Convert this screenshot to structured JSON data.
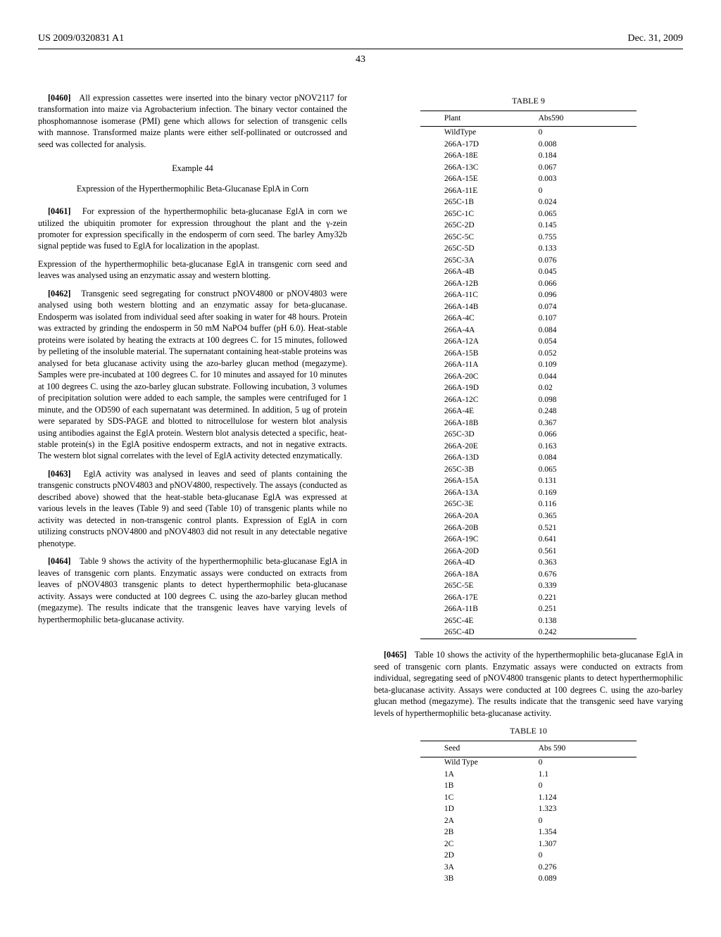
{
  "header": {
    "pubnum": "US 2009/0320831 A1",
    "date": "Dec. 31, 2009",
    "pagenum": "43"
  },
  "left": {
    "p0460_num": "[0460]",
    "p0460": "All expression cassettes were inserted into the binary vector pNOV2117 for transformation into maize via Agrobacterium infection. The binary vector contained the phosphomannose isomerase (PMI) gene which allows for selection of transgenic cells with mannose. Transformed maize plants were either self-pollinated or outcrossed and seed was collected for analysis.",
    "ex44": "Example 44",
    "ex44_sub": "Expression of the Hyperthermophilic Beta-Glucanase EplA in Corn",
    "p0461_num": "[0461]",
    "p0461": "For expression of the hyperthermophilic beta-glucanase EglA in corn we utilized the ubiquitin promoter for expression throughout the plant and the γ-zein promoter for expression specifically in the endosperm of corn seed. The barley Amy32b signal peptide was fused to EglA for localization in the apoplast.",
    "runon": "Expression of the hyperthermophilic beta-glucanase EglA in transgenic corn seed and leaves was analysed using an enzymatic assay and western blotting.",
    "p0462_num": "[0462]",
    "p0462": "Transgenic seed segregating for construct pNOV4800 or pNOV4803 were analysed using both western blotting and an enzymatic assay for beta-glucanase. Endosperm was isolated from individual seed after soaking in water for 48 hours. Protein was extracted by grinding the endosperm in 50 mM NaPO4 buffer (pH 6.0). Heat-stable proteins were isolated by heating the extracts at 100 degrees C. for 15 minutes, followed by pelleting of the insoluble material. The supernatant containing heat-stable proteins was analysed for beta glucanase activity using the azo-barley glucan method (megazyme). Samples were pre-incubated at 100 degrees C. for 10 minutes and assayed for 10 minutes at 100 degrees C. using the azo-barley glucan substrate. Following incubation, 3 volumes of precipitation solution were added to each sample, the samples were centrifuged for 1 minute, and the OD590 of each supernatant was determined. In addition, 5 ug of protein were separated by SDS-PAGE and blotted to nitrocellulose for western blot analysis using antibodies against the EglA protein. Western blot analysis detected a specific, heat-stable protein(s) in the EglA positive endosperm extracts, and not in negative extracts. The western blot signal correlates with the level of EglA activity detected enzymatically.",
    "p0463_num": "[0463]",
    "p0463": "EglA activity was analysed in leaves and seed of plants containing the transgenic constructs pNOV4803 and pNOV4800, respectively. The assays (conducted as described above) showed that the heat-stable beta-glucanase EglA was expressed at various levels in the leaves (Table 9) and seed (Table 10) of transgenic plants while no activity was detected in non-transgenic control plants. Expression of EglA in corn utilizing constructs pNOV4800 and pNOV4803 did not result in any detectable negative phenotype.",
    "p0464_num": "[0464]",
    "p0464": "Table 9 shows the activity of the hyperthermophilic beta-glucanase EglA in leaves of transgenic corn plants. Enzymatic assays were conducted on extracts from leaves of pNOV4803 transgenic plants to detect hyperthermophilic beta-glucanase activity. Assays were conducted at 100 degrees C. using the azo-barley glucan method (megazyme). The results indicate that the transgenic leaves have varying levels of hyperthermophilic beta-glucanase activity."
  },
  "table9": {
    "caption": "TABLE 9",
    "col1": "Plant",
    "col2": "Abs590",
    "rows": [
      [
        "WildType",
        "0"
      ],
      [
        "266A-17D",
        "0.008"
      ],
      [
        "266A-18E",
        "0.184"
      ],
      [
        "266A-13C",
        "0.067"
      ],
      [
        "266A-15E",
        "0.003"
      ],
      [
        "266A-11E",
        "0"
      ],
      [
        "265C-1B",
        "0.024"
      ],
      [
        "265C-1C",
        "0.065"
      ],
      [
        "265C-2D",
        "0.145"
      ],
      [
        "265C-5C",
        "0.755"
      ],
      [
        "265C-5D",
        "0.133"
      ],
      [
        "265C-3A",
        "0.076"
      ],
      [
        "266A-4B",
        "0.045"
      ],
      [
        "266A-12B",
        "0.066"
      ],
      [
        "266A-11C",
        "0.096"
      ],
      [
        "266A-14B",
        "0.074"
      ],
      [
        "266A-4C",
        "0.107"
      ],
      [
        "266A-4A",
        "0.084"
      ],
      [
        "266A-12A",
        "0.054"
      ],
      [
        "266A-15B",
        "0.052"
      ],
      [
        "266A-11A",
        "0.109"
      ],
      [
        "266A-20C",
        "0.044"
      ],
      [
        "266A-19D",
        "0.02"
      ],
      [
        "266A-12C",
        "0.098"
      ],
      [
        "266A-4E",
        "0.248"
      ],
      [
        "266A-18B",
        "0.367"
      ],
      [
        "265C-3D",
        "0.066"
      ],
      [
        "266A-20E",
        "0.163"
      ],
      [
        "266A-13D",
        "0.084"
      ],
      [
        "265C-3B",
        "0.065"
      ],
      [
        "266A-15A",
        "0.131"
      ],
      [
        "266A-13A",
        "0.169"
      ],
      [
        "265C-3E",
        "0.116"
      ],
      [
        "266A-20A",
        "0.365"
      ],
      [
        "266A-20B",
        "0.521"
      ],
      [
        "266A-19C",
        "0.641"
      ],
      [
        "266A-20D",
        "0.561"
      ],
      [
        "266A-4D",
        "0.363"
      ],
      [
        "266A-18A",
        "0.676"
      ],
      [
        "265C-5E",
        "0.339"
      ],
      [
        "266A-17E",
        "0.221"
      ],
      [
        "266A-11B",
        "0.251"
      ],
      [
        "265C-4E",
        "0.138"
      ],
      [
        "265C-4D",
        "0.242"
      ]
    ]
  },
  "right": {
    "p0465_num": "[0465]",
    "p0465": "Table 10 shows the activity of the hyperthermophilic beta-glucanase EglA in seed of transgenic corn plants. Enzymatic assays were conducted on extracts from individual, segregating seed of pNOV4800 transgenic plants to detect hyperthermophilic beta-glucanase activity. Assays were conducted at 100 degrees C. using the azo-barley glucan method (megazyme). The results indicate that the transgenic seed have varying levels of hyperthermophilic beta-glucanase activity."
  },
  "table10": {
    "caption": "TABLE 10",
    "col1": "Seed",
    "col2": "Abs 590",
    "rows": [
      [
        "Wild Type",
        "0"
      ],
      [
        "1A",
        "1.1"
      ],
      [
        "1B",
        "0"
      ],
      [
        "1C",
        "1.124"
      ],
      [
        "1D",
        "1.323"
      ],
      [
        "2A",
        "0"
      ],
      [
        "2B",
        "1.354"
      ],
      [
        "2C",
        "1.307"
      ],
      [
        "2D",
        "0"
      ],
      [
        "3A",
        "0.276"
      ],
      [
        "3B",
        "0.089"
      ]
    ]
  }
}
